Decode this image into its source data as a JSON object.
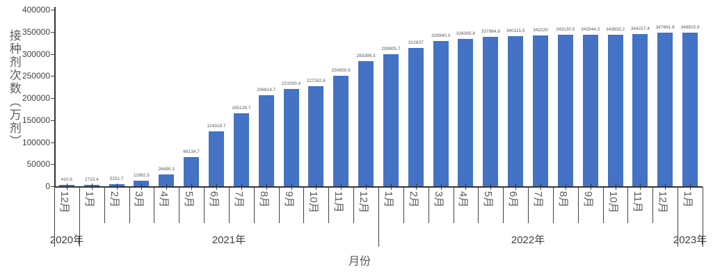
{
  "chart_data": {
    "type": "bar",
    "title": "",
    "xlabel": "月份",
    "ylabel": "接种剂次数（万剂）",
    "ylim": [
      0,
      400000
    ],
    "y_ticks": [
      0,
      50000,
      100000,
      150000,
      200000,
      250000,
      300000,
      350000,
      400000
    ],
    "grid": false,
    "legend_position": "none",
    "bar_color": "#4472C4",
    "axis_color": "#333333",
    "label_color": "#595959",
    "year_groups": [
      {
        "year": "2020年",
        "months": [
          "12月"
        ]
      },
      {
        "year": "2021年",
        "months": [
          "1月",
          "2月",
          "3月",
          "4月",
          "5月",
          "6月",
          "7月",
          "8月",
          "9月",
          "10月",
          "11月",
          "12月"
        ]
      },
      {
        "year": "2022年",
        "months": [
          "1月",
          "2月",
          "3月",
          "4月",
          "5月",
          "6月",
          "7月",
          "8月",
          "9月",
          "10月",
          "11月",
          "12月"
        ]
      },
      {
        "year": "2023年",
        "months": [
          "1月"
        ]
      }
    ],
    "values": [
      410.6,
      2715.4,
      5251.7,
      11982.5,
      26495.3,
      66134.7,
      124318.7,
      165126.7,
      206614.7,
      221000.4,
      227262.6,
      250650.6,
      283386.3,
      299905.7,
      312837,
      328940.3,
      334305.8,
      337984.8,
      340115.5,
      342220,
      343130.5,
      343544.2,
      343833.2,
      344227.4,
      347661.8,
      348815.9
    ],
    "data_labels": [
      "410.6",
      "2715.4",
      "5251.7",
      "11982.5",
      "26495.3",
      "66134.7",
      "124318.7",
      "165126.7",
      "206614.7",
      "221000.4",
      "227262.6",
      "250650.6",
      "283386.3",
      "299905.7",
      "312837",
      "328940.3",
      "334305.8",
      "337984.8",
      "340115.5",
      "342220",
      "343130.5",
      "343544.2",
      "343833.2",
      "344227.4",
      "347661.8",
      "348815.9"
    ]
  }
}
